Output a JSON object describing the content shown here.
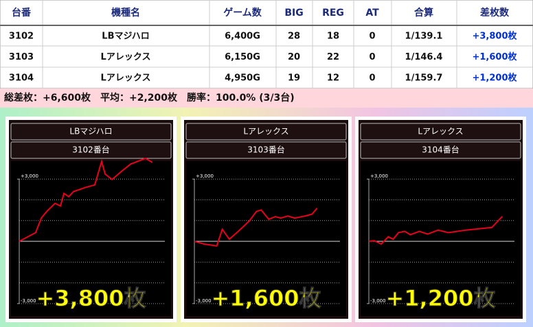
{
  "table": {
    "headers": [
      "台番",
      "機種名",
      "ゲーム数",
      "BIG",
      "REG",
      "AT",
      "合算",
      "差枚数"
    ],
    "rows": [
      [
        "3102",
        "LBマジハロ",
        "6,400G",
        "28",
        "18",
        "0",
        "1/139.1",
        "+3,800枚"
      ],
      [
        "3103",
        "Lアレックス",
        "6,150G",
        "20",
        "22",
        "0",
        "1/146.4",
        "+1,600枚"
      ],
      [
        "3104",
        "Lアレックス",
        "4,950G",
        "19",
        "12",
        "0",
        "1/159.7",
        "+1,200枚"
      ]
    ]
  },
  "summary": "総差枚：+6,600枚　平均：+2,200枚　勝率：100.0% (3/3台)",
  "chart_data": [
    {
      "type": "line",
      "title": "LBマジハロ",
      "subtitle": "3102番台",
      "annotation": "+3,800枚",
      "color": "#e8001c",
      "x": [
        0,
        790,
        1060,
        1320,
        1720,
        1980,
        2150,
        2380,
        2610,
        3200,
        3630,
        3960,
        4130,
        4460,
        4950,
        5350,
        6070,
        6400
      ],
      "values": [
        0,
        420,
        1120,
        1440,
        1830,
        1700,
        2310,
        2150,
        2400,
        2600,
        2720,
        3850,
        3240,
        2980,
        3400,
        3720,
        4000,
        3800
      ],
      "xlim": [
        0,
        7000
      ],
      "ylim": [
        -3500,
        3800
      ],
      "yticks": [
        {
          "value": 3000,
          "label": "+3,000"
        },
        {
          "value": -3000,
          "label": "-3,000"
        }
      ],
      "grid_lines": [
        3000,
        2000,
        1000,
        0,
        -1000,
        -2000,
        -3000
      ]
    },
    {
      "type": "line",
      "title": "Lアレックス",
      "subtitle": "3103番台",
      "annotation": "+1,600枚",
      "color": "#e8001c",
      "x": [
        0,
        490,
        1120,
        1400,
        1750,
        2230,
        2760,
        3110,
        3350,
        3730,
        4050,
        4330,
        4680,
        5030,
        5550,
        5900,
        6150
      ],
      "values": [
        0,
        -130,
        -220,
        580,
        100,
        510,
        990,
        1440,
        1510,
        1060,
        1190,
        1120,
        1220,
        1120,
        1220,
        1310,
        1600
      ],
      "xlim": [
        0,
        7300
      ],
      "ylim": [
        -3500,
        3800
      ],
      "yticks": [
        {
          "value": 3000,
          "label": "+3,000"
        },
        {
          "value": -3000,
          "label": "-3,000"
        }
      ],
      "grid_lines": [
        3000,
        2000,
        1000,
        0,
        -1000,
        -2000,
        -3000
      ]
    },
    {
      "type": "line",
      "title": "Lアレックス",
      "subtitle": "3104番台",
      "annotation": "+1,200枚",
      "color": "#e8001c",
      "x": [
        0,
        200,
        460,
        720,
        900,
        1100,
        1330,
        1540,
        1870,
        2180,
        2560,
        2950,
        3590,
        4100,
        4560,
        4950
      ],
      "values": [
        0,
        30,
        -130,
        220,
        100,
        420,
        480,
        320,
        480,
        350,
        540,
        420,
        540,
        610,
        670,
        1200
      ],
      "xlim": [
        0,
        5400
      ],
      "ylim": [
        -3500,
        3800
      ],
      "yticks": [
        {
          "value": 3000,
          "label": "+3,000"
        },
        {
          "value": -3000,
          "label": "-3,000"
        }
      ],
      "grid_lines": [
        3000,
        2000,
        1000,
        0,
        -1000,
        -2000,
        -3000
      ]
    }
  ]
}
